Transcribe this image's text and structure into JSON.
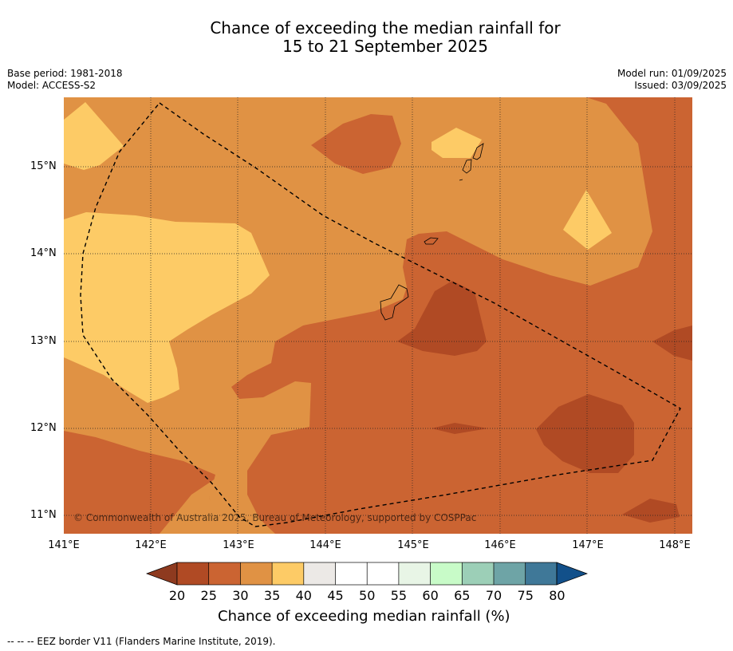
{
  "title": {
    "line1": "Chance of exceeding the median rainfall for",
    "line2": "15 to 21 September 2025"
  },
  "header_left": {
    "base_period": "Base period: 1981-2018",
    "model": "Model: ACCESS-S2"
  },
  "header_right": {
    "model_run": "Model run: 01/09/2025",
    "issued": "Issued: 03/09/2025"
  },
  "map": {
    "x_ticks": [
      "141°E",
      "142°E",
      "143°E",
      "144°E",
      "145°E",
      "146°E",
      "147°E",
      "148°E"
    ],
    "y_ticks": [
      "15°N",
      "14°N",
      "13°N",
      "12°N",
      "11°N"
    ],
    "copyright": "© Commonwealth of Australia 2025, Bureau of Meteorology, supported by COSPPac",
    "fill_colors": {
      "20-25": "#b04a24",
      "25-30": "#cb6432",
      "30-35": "#e09244",
      "35-40": "#fdcb66"
    }
  },
  "colorbar": {
    "ticks": [
      "20",
      "25",
      "30",
      "35",
      "40",
      "45",
      "50",
      "55",
      "60",
      "65",
      "70",
      "75",
      "80"
    ],
    "colors": [
      "#8e3a1f",
      "#b04a24",
      "#cb6432",
      "#e09244",
      "#fdcb66",
      "#ece9e6",
      "#ffffff",
      "#ffffff",
      "#e8f5e6",
      "#c8fbc8",
      "#9ccfb7",
      "#6ea4a6",
      "#3f7898",
      "#12508a"
    ],
    "title": "Chance of exceeding median rainfall (%)"
  },
  "footnote": "--  --  -- EEZ border V11 (Flanders Marine Institute, 2019)."
}
